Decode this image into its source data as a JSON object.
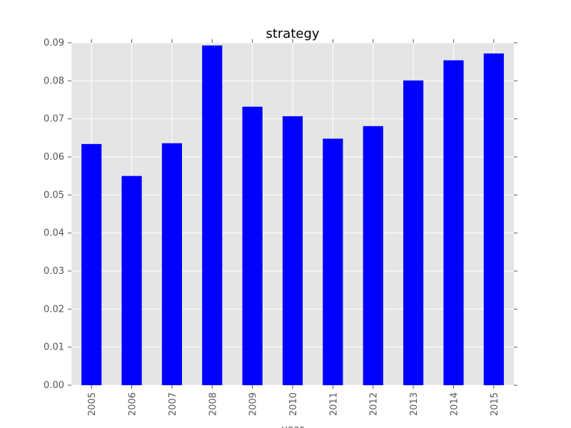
{
  "chart_data": {
    "type": "bar",
    "title": "strategy",
    "xlabel": "year",
    "ylabel": "",
    "categories": [
      "2005",
      "2006",
      "2007",
      "2008",
      "2009",
      "2010",
      "2011",
      "2012",
      "2013",
      "2014",
      "2015"
    ],
    "values": [
      0.0634,
      0.055,
      0.0636,
      0.0893,
      0.0732,
      0.0707,
      0.0648,
      0.0681,
      0.0801,
      0.0854,
      0.0872
    ],
    "ylim": [
      0,
      0.09
    ],
    "yticks": [
      "0.00",
      "0.01",
      "0.02",
      "0.03",
      "0.04",
      "0.05",
      "0.06",
      "0.07",
      "0.08",
      "0.09"
    ],
    "grid": true,
    "legend": false,
    "bar_color": "#0000ff",
    "background_color": "#e5e5e5",
    "grid_color": "#ffffff"
  }
}
